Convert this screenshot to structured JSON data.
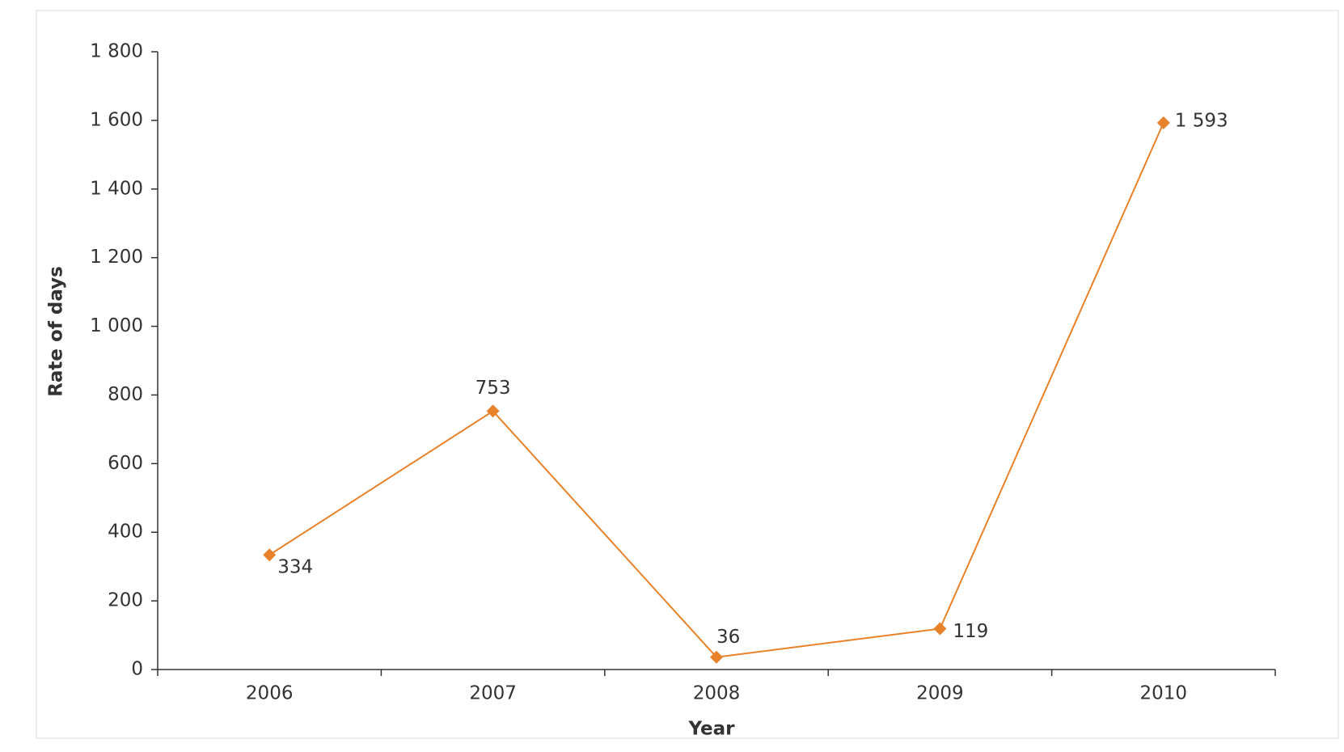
{
  "chart_data": {
    "type": "line",
    "x_label": "Year",
    "y_label": "Rate of days",
    "categories": [
      "2006",
      "2007",
      "2008",
      "2009",
      "2010"
    ],
    "series": [
      {
        "name": "Rate of days",
        "color": "#e8822a",
        "values": [
          334,
          753,
          36,
          119,
          1593
        ],
        "value_labels": [
          "334",
          "753",
          "36",
          "119",
          "1 593"
        ]
      }
    ],
    "ylim": [
      0,
      1800
    ],
    "yticks": [
      0,
      200,
      400,
      600,
      800,
      {
        "value": 1000,
        "label": "1 000"
      },
      {
        "value": 1200,
        "label": "1 200"
      },
      {
        "value": 1400,
        "label": "1 400"
      },
      {
        "value": 1600,
        "label": "1 600"
      },
      {
        "value": 1800,
        "label": "1 800"
      }
    ],
    "grid": false
  }
}
